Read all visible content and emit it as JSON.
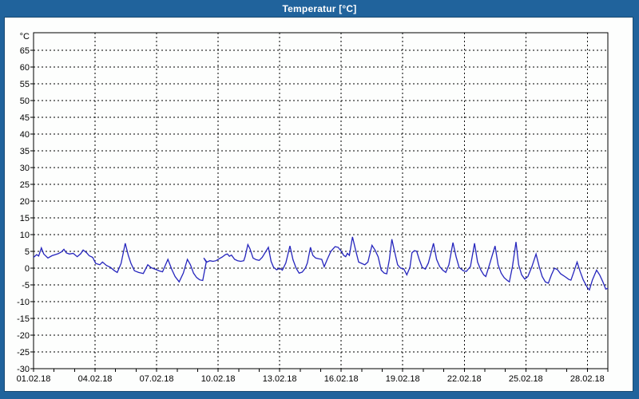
{
  "window": {
    "title": "Temperatur [°C]",
    "titlebar_color": "#20639c",
    "content_background": "#fdfefd"
  },
  "chart_data": {
    "type": "line",
    "title": "Temperatur [°C]",
    "xlabel": "",
    "ylabel": "°C",
    "ylim": [
      -30,
      70.2
    ],
    "ytick_min": -30,
    "ytick_max": 65,
    "ytick_step": 5,
    "x_total_days": 28,
    "xticks": [
      {
        "day": 0,
        "label": "01.02.18"
      },
      {
        "day": 3,
        "label": "04.02.18"
      },
      {
        "day": 6,
        "label": "07.02.18"
      },
      {
        "day": 9,
        "label": "10.02.18"
      },
      {
        "day": 12,
        "label": "13.02.18"
      },
      {
        "day": 15,
        "label": "16.02.18"
      },
      {
        "day": 18,
        "label": "19.02.18"
      },
      {
        "day": 21,
        "label": "22.02.18"
      },
      {
        "day": 24,
        "label": "25.02.18"
      },
      {
        "day": 27,
        "label": "28.02.18"
      }
    ],
    "grid": "dashed",
    "legend": "none",
    "line_color": "#2525bd",
    "series": [
      {
        "name": "Temperatur",
        "points": [
          [
            0.0,
            3.2
          ],
          [
            0.15,
            4.0
          ],
          [
            0.25,
            3.6
          ],
          [
            0.38,
            6.0
          ],
          [
            0.5,
            4.2
          ],
          [
            0.7,
            3.0
          ],
          [
            0.9,
            3.7
          ],
          [
            1.05,
            4.0
          ],
          [
            1.2,
            4.3
          ],
          [
            1.35,
            4.8
          ],
          [
            1.48,
            5.6
          ],
          [
            1.6,
            4.5
          ],
          [
            1.75,
            4.2
          ],
          [
            1.93,
            4.4
          ],
          [
            2.13,
            3.4
          ],
          [
            2.3,
            4.3
          ],
          [
            2.42,
            5.4
          ],
          [
            2.58,
            4.6
          ],
          [
            2.71,
            3.7
          ],
          [
            2.88,
            3.2
          ],
          [
            3.03,
            1.4
          ],
          [
            3.23,
            1.0
          ],
          [
            3.36,
            1.8
          ],
          [
            3.55,
            0.8
          ],
          [
            3.75,
            0.2
          ],
          [
            3.95,
            -0.8
          ],
          [
            4.08,
            -1.3
          ],
          [
            4.27,
            1.4
          ],
          [
            4.47,
            7.4
          ],
          [
            4.62,
            3.8
          ],
          [
            4.75,
            1.4
          ],
          [
            4.92,
            -0.8
          ],
          [
            5.12,
            -1.3
          ],
          [
            5.35,
            -1.6
          ],
          [
            5.57,
            1.0
          ],
          [
            5.74,
            0.1
          ],
          [
            5.96,
            -0.4
          ],
          [
            6.16,
            -0.9
          ],
          [
            6.29,
            -1.1
          ],
          [
            6.55,
            2.6
          ],
          [
            6.75,
            -0.5
          ],
          [
            6.9,
            -2.5
          ],
          [
            7.1,
            -4.1
          ],
          [
            7.3,
            -1.5
          ],
          [
            7.5,
            2.6
          ],
          [
            7.65,
            1.0
          ],
          [
            7.8,
            -1.5
          ],
          [
            7.95,
            -2.8
          ],
          [
            8.1,
            -3.5
          ],
          [
            8.25,
            -3.7
          ],
          [
            8.42,
            1.8
          ],
          [
            8.3,
            3.0
          ],
          [
            8.45,
            1.8
          ],
          [
            8.6,
            2.2
          ],
          [
            8.75,
            2.0
          ],
          [
            8.9,
            2.2
          ],
          [
            9.05,
            2.8
          ],
          [
            9.2,
            3.3
          ],
          [
            9.35,
            4.0
          ],
          [
            9.45,
            4.2
          ],
          [
            9.55,
            3.5
          ],
          [
            9.65,
            3.9
          ],
          [
            9.8,
            2.6
          ],
          [
            9.95,
            2.2
          ],
          [
            10.1,
            2.0
          ],
          [
            10.25,
            2.2
          ],
          [
            10.32,
            3.5
          ],
          [
            10.45,
            7.0
          ],
          [
            10.55,
            5.8
          ],
          [
            10.7,
            3.0
          ],
          [
            10.85,
            2.5
          ],
          [
            11.0,
            2.3
          ],
          [
            11.15,
            3.2
          ],
          [
            11.45,
            6.2
          ],
          [
            11.58,
            2.0
          ],
          [
            11.7,
            0.3
          ],
          [
            11.85,
            -0.5
          ],
          [
            12.0,
            0.0
          ],
          [
            12.13,
            -0.6
          ],
          [
            12.3,
            1.5
          ],
          [
            12.5,
            6.6
          ],
          [
            12.65,
            2.5
          ],
          [
            12.8,
            0.0
          ],
          [
            12.95,
            -1.5
          ],
          [
            13.1,
            -1.2
          ],
          [
            13.25,
            0.0
          ],
          [
            13.35,
            1.5
          ],
          [
            13.5,
            6.2
          ],
          [
            13.62,
            3.8
          ],
          [
            13.75,
            3.0
          ],
          [
            13.9,
            2.8
          ],
          [
            14.05,
            2.6
          ],
          [
            14.17,
            0.4
          ],
          [
            14.32,
            2.6
          ],
          [
            14.5,
            5.0
          ],
          [
            14.7,
            6.4
          ],
          [
            14.85,
            6.2
          ],
          [
            15.0,
            5.0
          ],
          [
            15.12,
            3.8
          ],
          [
            15.22,
            3.4
          ],
          [
            15.3,
            4.4
          ],
          [
            15.4,
            3.8
          ],
          [
            15.55,
            9.3
          ],
          [
            15.7,
            5.4
          ],
          [
            15.85,
            1.8
          ],
          [
            16.0,
            1.4
          ],
          [
            16.15,
            1.0
          ],
          [
            16.3,
            1.8
          ],
          [
            16.5,
            6.8
          ],
          [
            16.65,
            5.4
          ],
          [
            16.8,
            3.4
          ],
          [
            16.95,
            -0.6
          ],
          [
            17.1,
            -1.5
          ],
          [
            17.22,
            -1.7
          ],
          [
            17.35,
            2.6
          ],
          [
            17.47,
            8.6
          ],
          [
            17.6,
            5.0
          ],
          [
            17.75,
            1.0
          ],
          [
            17.9,
            0.0
          ],
          [
            18.05,
            -0.2
          ],
          [
            18.2,
            -2.0
          ],
          [
            18.35,
            0.2
          ],
          [
            18.45,
            4.6
          ],
          [
            18.57,
            5.2
          ],
          [
            18.68,
            5.0
          ],
          [
            18.8,
            2.6
          ],
          [
            18.95,
            0.2
          ],
          [
            19.1,
            -0.3
          ],
          [
            19.25,
            1.5
          ],
          [
            19.5,
            7.4
          ],
          [
            19.65,
            2.6
          ],
          [
            19.8,
            0.5
          ],
          [
            19.95,
            -0.6
          ],
          [
            20.1,
            -1.3
          ],
          [
            20.25,
            1.0
          ],
          [
            20.45,
            7.6
          ],
          [
            20.6,
            3.4
          ],
          [
            20.75,
            0.2
          ],
          [
            20.95,
            -0.8
          ],
          [
            21.1,
            -1.0
          ],
          [
            21.3,
            0.5
          ],
          [
            21.5,
            7.4
          ],
          [
            21.65,
            1.8
          ],
          [
            21.8,
            -0.5
          ],
          [
            21.95,
            -2.0
          ],
          [
            22.05,
            -2.5
          ],
          [
            22.2,
            0.5
          ],
          [
            22.5,
            6.6
          ],
          [
            22.65,
            1.0
          ],
          [
            22.8,
            -1.5
          ],
          [
            22.95,
            -2.9
          ],
          [
            23.1,
            -3.7
          ],
          [
            23.2,
            -4.1
          ],
          [
            23.35,
            0.5
          ],
          [
            23.52,
            7.8
          ],
          [
            23.65,
            1.0
          ],
          [
            23.8,
            -2.0
          ],
          [
            23.95,
            -3.3
          ],
          [
            24.1,
            -2.5
          ],
          [
            24.3,
            0.5
          ],
          [
            24.5,
            4.2
          ],
          [
            24.65,
            0.5
          ],
          [
            24.8,
            -2.5
          ],
          [
            24.95,
            -4.1
          ],
          [
            25.1,
            -4.5
          ],
          [
            25.25,
            -2.0
          ],
          [
            25.4,
            0.0
          ],
          [
            25.55,
            -0.5
          ],
          [
            25.7,
            -1.7
          ],
          [
            25.9,
            -2.5
          ],
          [
            26.1,
            -3.4
          ],
          [
            26.2,
            -3.6
          ],
          [
            26.35,
            -1.0
          ],
          [
            26.5,
            1.8
          ],
          [
            26.65,
            -1.0
          ],
          [
            26.8,
            -3.5
          ],
          [
            27.0,
            -5.8
          ],
          [
            27.1,
            -6.5
          ],
          [
            27.25,
            -3.5
          ],
          [
            27.45,
            -0.6
          ],
          [
            27.6,
            -2.0
          ],
          [
            27.75,
            -4.0
          ],
          [
            27.9,
            -6.3
          ],
          [
            28.0,
            -6.0
          ]
        ]
      }
    ]
  }
}
